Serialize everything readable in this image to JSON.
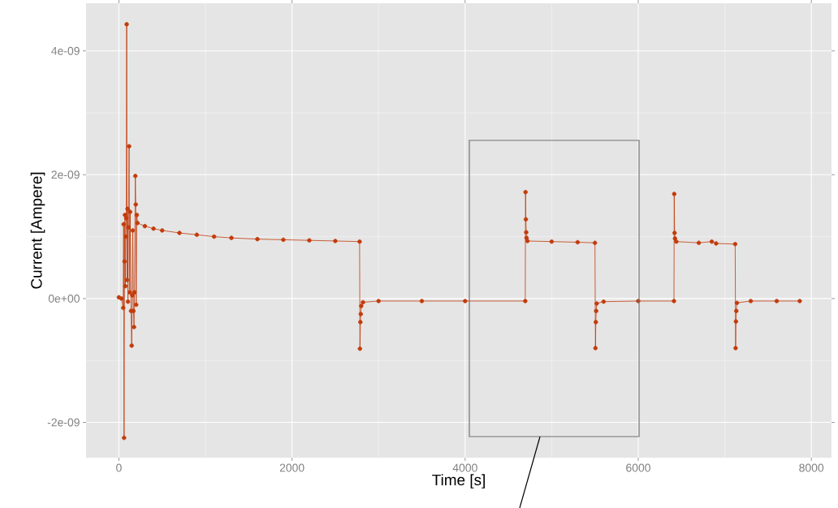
{
  "chart_data": {
    "type": "line",
    "xlabel": "Time [s]",
    "ylabel": "Current [Ampere]",
    "x": [
      0,
      30,
      50,
      55,
      60,
      65,
      70,
      75,
      80,
      85,
      90,
      95,
      100,
      105,
      110,
      118,
      125,
      130,
      140,
      148,
      155,
      160,
      168,
      175,
      180,
      190,
      195,
      200,
      207,
      215,
      300,
      400,
      500,
      700,
      900,
      1100,
      1300,
      1600,
      1900,
      2200,
      2500,
      2781,
      2785,
      2790,
      2795,
      2800,
      2820,
      3000,
      3500,
      4000,
      4695,
      4698,
      4702,
      4706,
      4710,
      4720,
      5000,
      5300,
      5500,
      5506,
      5510,
      5514,
      5520,
      5600,
      6000,
      6413,
      6416,
      6420,
      6425,
      6440,
      6700,
      6850,
      6900,
      7120,
      7125,
      7129,
      7133,
      7140,
      7300,
      7600,
      7866
    ],
    "values": [
      2e-11,
      0,
      -1.5e-10,
      1.2e-09,
      -2.25e-09,
      6e-10,
      1.35e-09,
      2e-10,
      1e-09,
      1.3e-09,
      4.43e-09,
      3e-10,
      1.45e-09,
      -5e-11,
      1.15e-09,
      2.46e-09,
      1e-10,
      1.4e-09,
      -2e-10,
      -7.6e-10,
      5e-11,
      1.1e-09,
      -2e-10,
      -4.6e-10,
      1e-10,
      1.98e-09,
      1.52e-09,
      -1e-10,
      1.35e-09,
      1.22e-09,
      1.17e-09,
      1.13e-09,
      1.1e-09,
      1.06e-09,
      1.03e-09,
      1e-09,
      9.8e-10,
      9.6e-10,
      9.5e-10,
      9.4e-10,
      9.3e-10,
      9.2e-10,
      -8.1e-10,
      -3.8e-10,
      -2.5e-10,
      -1.2e-10,
      -6e-11,
      -4e-11,
      -4e-11,
      -4e-11,
      -4e-11,
      1.72e-09,
      1.28e-09,
      1.07e-09,
      9.8e-10,
      9.3e-10,
      9.2e-10,
      9.1e-10,
      9e-10,
      -8e-10,
      -3.8e-10,
      -2e-10,
      -8e-11,
      -5e-11,
      -4e-11,
      -4e-11,
      1.69e-09,
      1.06e-09,
      9.7e-10,
      9.2e-10,
      9e-10,
      9.2e-10,
      8.9e-10,
      8.8e-10,
      -8e-10,
      -3.7e-10,
      -2e-10,
      -7e-11,
      -4e-11,
      -4e-11,
      -4e-11
    ],
    "color": "#c23b0b",
    "marker": "circle",
    "line_style": "solid",
    "grid": true,
    "xlim": [
      -379,
      8233
    ],
    "ylim": [
      -2.57e-09,
      4.77e-09
    ],
    "xticks": [
      0,
      2000,
      4000,
      6000,
      8000
    ],
    "yticks": [
      {
        "value": -2e-09,
        "label": "-2e-09"
      },
      {
        "value": 0,
        "label": "0e+00"
      },
      {
        "value": 2e-09,
        "label": "2e-09"
      },
      {
        "value": 4e-09,
        "label": "4e-09"
      }
    ]
  }
}
